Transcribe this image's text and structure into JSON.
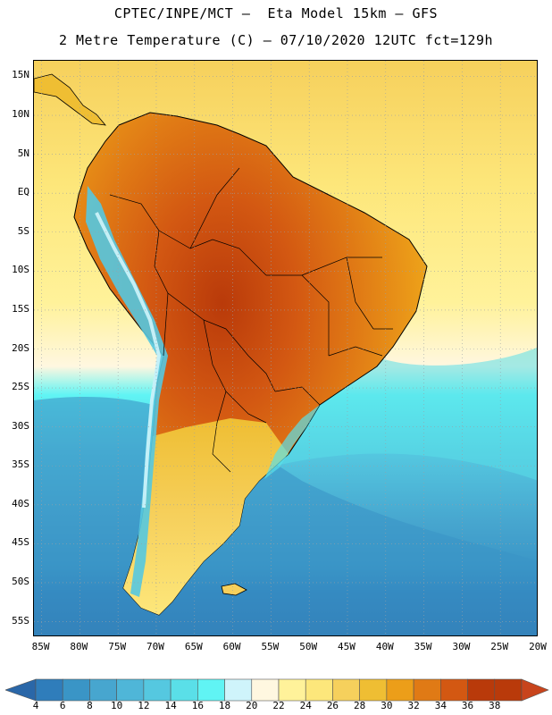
{
  "header": {
    "title_line1": "CPTEC/INPE/MCT –  Eta Model 15km – GFS",
    "title_line2": "2 Metre Temperature (C) – 07/10/2020 12UTC fct=129h"
  },
  "map": {
    "lat_labels": [
      "15N",
      "10N",
      "5N",
      "EQ",
      "5S",
      "10S",
      "15S",
      "20S",
      "25S",
      "30S",
      "35S",
      "40S",
      "45S",
      "50S",
      "55S"
    ],
    "lon_labels": [
      "85W",
      "80W",
      "75W",
      "70W",
      "65W",
      "60W",
      "55W",
      "50W",
      "45W",
      "40W",
      "35W",
      "30W",
      "25W",
      "20W"
    ],
    "lat_range": [
      -57,
      17
    ],
    "lon_range": [
      -86,
      -20
    ]
  },
  "colorbar": {
    "labels": [
      "4",
      "6",
      "8",
      "10",
      "12",
      "14",
      "16",
      "18",
      "20",
      "22",
      "24",
      "26",
      "28",
      "30",
      "32",
      "34",
      "36",
      "38"
    ],
    "colors": [
      "#2a67a8",
      "#2f7dbb",
      "#3a95c6",
      "#47a6cf",
      "#4fb6d8",
      "#55c8e0",
      "#5adfe8",
      "#60f4f4",
      "#cff4fb",
      "#fff7e0",
      "#fff29a",
      "#fde77b",
      "#f6d05c",
      "#efbe33",
      "#ec9e19",
      "#e07a15",
      "#d35812",
      "#b93a0a",
      "#c8441c"
    ]
  }
}
